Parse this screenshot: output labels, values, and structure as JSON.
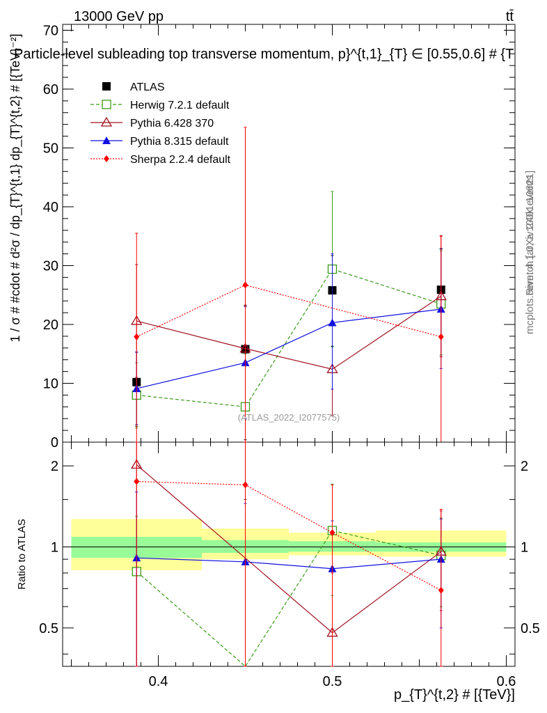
{
  "header": {
    "energy_label": "13000 GeV pp",
    "process_label": "tt̄",
    "title": "Particle-level subleading top transverse momentum, p}^{t,1}_{T} ∈ [0.55,0.6] # {T",
    "rivet_label": "Rivet 4.1.0, ≥ 100k events",
    "mcplots_label": "mcplots.cern.ch [arXiv:2401.10621]",
    "analysis_id": "(ATLAS_2022_I2077575)"
  },
  "colors": {
    "atlas": "#000000",
    "herwig": "#3a9a1a",
    "pythia6": "#a01020",
    "pythia8": "#1010e0",
    "sherpa": "#ff0000",
    "band_inner": "#98fb98",
    "band_outer": "#ffff99"
  },
  "chart_data": [
    {
      "type": "line",
      "panel": "main",
      "title": "Particle-level subleading top transverse momentum",
      "ylabel": "1 / σ # #cdot # d²σ / dp_{T}^{t,1} dp_{T}^{t,2} # [{TeV}⁻²]",
      "xlim": [
        0.345,
        0.605
      ],
      "ylim": [
        0,
        71
      ],
      "yticks": [
        0,
        10,
        20,
        30,
        40,
        50,
        60,
        70
      ],
      "legend_position": "top-left",
      "series": [
        {
          "name": "ATLAS",
          "key": "atlas",
          "marker": "filled-square",
          "style": "none",
          "x": [
            0.3875,
            0.45,
            0.5,
            0.5625
          ],
          "y": [
            10.2,
            15.8,
            25.8,
            25.9
          ],
          "ylo": [
            2.7,
            0.4,
            16.3,
            14.8
          ],
          "yhi": [
            15.3,
            23.2,
            31.7,
            32.9
          ]
        },
        {
          "name": "Herwig 7.2.1 default",
          "key": "herwig",
          "marker": "open-square",
          "style": "dashed",
          "x": [
            0.3875,
            0.45,
            0.5,
            0.5625
          ],
          "y": [
            8.0,
            6.0,
            29.4,
            23.5
          ],
          "ylo": [
            2.4,
            0.0,
            16.2,
            14.8
          ],
          "yhi": [
            13.5,
            15.0,
            42.6,
            32.5
          ]
        },
        {
          "name": "Pythia 6.428 370",
          "key": "pythia6",
          "marker": "open-triangle",
          "style": "solid",
          "x": [
            0.3875,
            0.45,
            0.5,
            0.5625
          ],
          "y": [
            20.6,
            15.9,
            12.4,
            24.8
          ],
          "ylo": [
            11.0,
            0.0,
            4.5,
            14.5
          ],
          "yhi": [
            30.2,
            23.3,
            20.3,
            35.1
          ]
        },
        {
          "name": "Pythia 8.315 default",
          "key": "pythia8",
          "marker": "filled-triangle",
          "style": "solid",
          "x": [
            0.3875,
            0.45,
            0.5,
            0.5625
          ],
          "y": [
            9.1,
            13.5,
            20.3,
            22.6
          ],
          "ylo": [
            3.0,
            4.0,
            9.0,
            12.5
          ],
          "yhi": [
            15.3,
            23.0,
            32.0,
            32.8
          ]
        },
        {
          "name": "Sherpa 2.2.4 default",
          "key": "sherpa",
          "marker": "filled-diamond",
          "style": "dotted",
          "x": [
            0.3875,
            0.45,
            0.5,
            0.5625
          ],
          "y": [
            17.9,
            26.7,
            null,
            17.9
          ],
          "ylo": [
            0.0,
            0.0,
            null,
            0.0
          ],
          "yhi": [
            35.5,
            53.5,
            null,
            35.0
          ]
        }
      ]
    },
    {
      "type": "line",
      "panel": "ratio",
      "ylabel": "Ratio to ATLAS",
      "xlabel": "p_{T}^{t,2} # [{TeV}]",
      "xlim": [
        0.345,
        0.605
      ],
      "ylim": [
        0.36,
        2.45
      ],
      "yscale": "log",
      "yticks": [
        0.5,
        1,
        2
      ],
      "xticks": [
        0.4,
        0.5,
        0.6
      ],
      "bands": [
        {
          "xlo": 0.35,
          "xhi": 0.425,
          "inner": [
            0.91,
            1.09
          ],
          "outer": [
            0.82,
            1.27
          ]
        },
        {
          "xlo": 0.425,
          "xhi": 0.475,
          "inner": [
            0.95,
            1.06
          ],
          "outer": [
            0.9,
            1.17
          ]
        },
        {
          "xlo": 0.475,
          "xhi": 0.525,
          "inner": [
            0.96,
            1.05
          ],
          "outer": [
            0.93,
            1.13
          ]
        },
        {
          "xlo": 0.525,
          "xhi": 0.6,
          "inner": [
            0.96,
            1.04
          ],
          "outer": [
            0.92,
            1.15
          ]
        }
      ],
      "series": [
        {
          "name": "Herwig 7.2.1 default",
          "key": "herwig",
          "marker": "open-square",
          "style": "dashed",
          "x": [
            0.3875,
            0.45,
            0.5,
            0.5625
          ],
          "y": [
            0.81,
            0.3,
            1.15,
            0.93
          ],
          "ylo": [
            0.3,
            0.3,
            0.66,
            0.6
          ],
          "yhi": [
            1.3,
            0.9,
            1.71,
            1.28
          ]
        },
        {
          "name": "Pythia 6.428 370",
          "key": "pythia6",
          "marker": "open-triangle",
          "style": "solid",
          "x": [
            0.3875,
            0.45,
            0.5,
            0.5625
          ],
          "y": [
            2.02,
            null,
            0.48,
            0.96
          ],
          "ylo": [
            0.3,
            0.3,
            0.3,
            0.58
          ],
          "yhi": [
            3.0,
            1.5,
            0.8,
            1.36
          ]
        },
        {
          "name": "Pythia 8.315 default",
          "key": "pythia8",
          "marker": "filled-triangle",
          "style": "solid",
          "x": [
            0.3875,
            0.45,
            0.5,
            0.5625
          ],
          "y": [
            0.91,
            0.88,
            0.83,
            0.9
          ],
          "ylo": [
            0.3,
            0.3,
            0.3,
            0.5
          ],
          "yhi": [
            1.6,
            1.45,
            1.25,
            1.27
          ]
        },
        {
          "name": "Sherpa 2.2.4 default",
          "key": "sherpa",
          "marker": "filled-diamond",
          "style": "dotted",
          "x": [
            0.3875,
            0.45,
            0.5,
            0.5625
          ],
          "y": [
            1.75,
            1.7,
            1.13,
            0.69
          ],
          "ylo": [
            0.3,
            0.3,
            0.3,
            0.3
          ],
          "yhi": [
            3.0,
            3.0,
            1.7,
            1.38
          ]
        }
      ]
    }
  ]
}
